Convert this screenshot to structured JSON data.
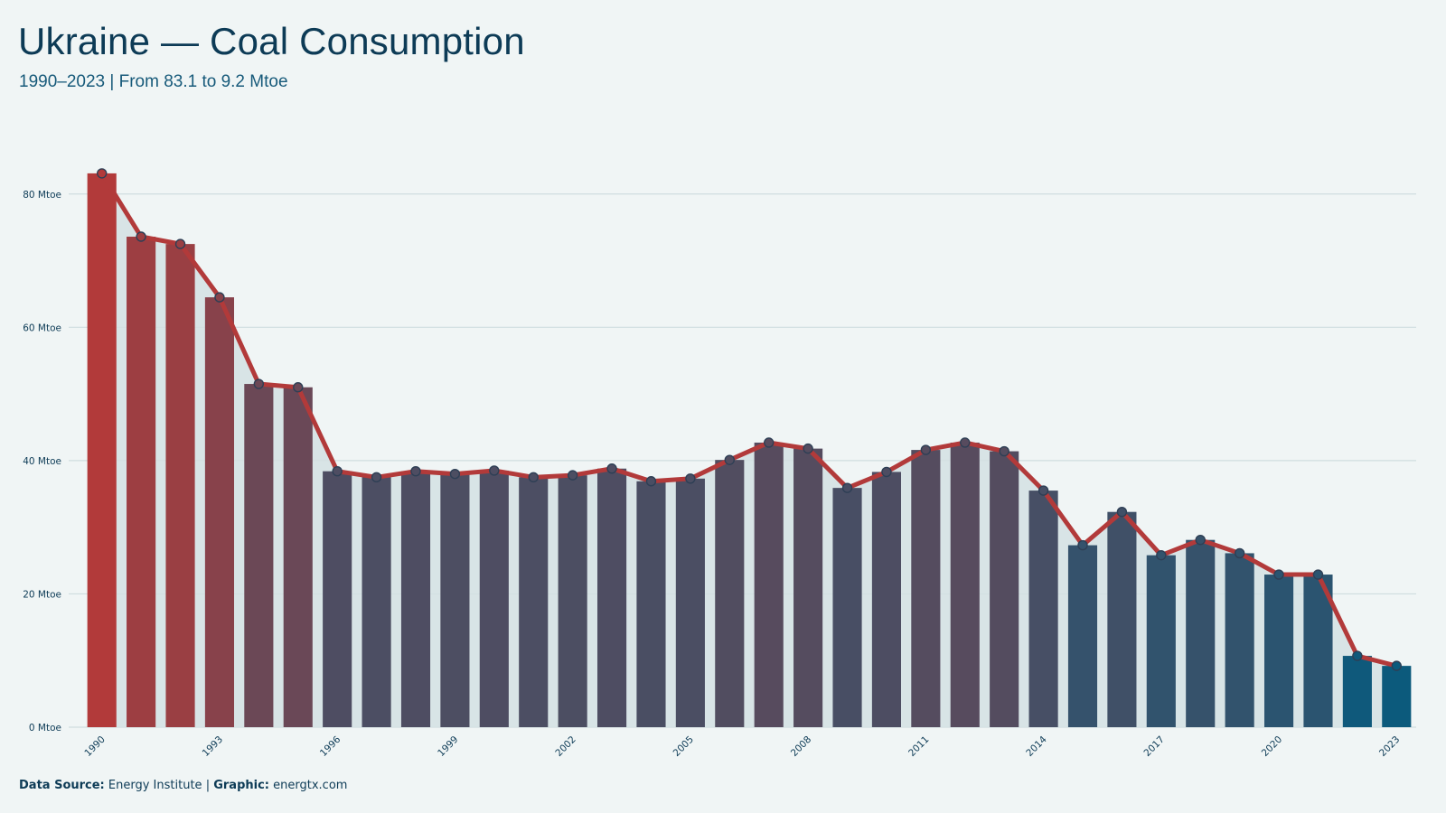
{
  "title": "Ukraine — Coal Consumption",
  "subtitle": "1990–2023 | From 83.1 to 9.2 Mtoe",
  "footer": {
    "source_label": "Data Source:",
    "source_value": "Energy Institute",
    "separator": "|",
    "graphic_label": "Graphic:",
    "graphic_value": "energtx.com"
  },
  "colors": {
    "background": "#f0f5f5",
    "line": "#b23a3a",
    "high": "#b23a3a",
    "low": "#0c5a7c",
    "grid": "#cfdddf",
    "area": "#d3e0e3",
    "text": "#0d3b56"
  },
  "chart_data": {
    "type": "bar",
    "title": "Ukraine — Coal Consumption",
    "subtitle": "1990–2023 | From 83.1 to 9.2 Mtoe",
    "xlabel": "",
    "ylabel": "",
    "unit": "Mtoe",
    "ylim": [
      0,
      90
    ],
    "y_ticks": [
      0,
      20,
      40,
      60,
      80
    ],
    "y_tick_labels": [
      "0 Mtoe",
      "20 Mtoe",
      "40 Mtoe",
      "60 Mtoe",
      "80 Mtoe"
    ],
    "x_tick_labels": [
      "1990",
      "1993",
      "1996",
      "1999",
      "2002",
      "2005",
      "2008",
      "2011",
      "2014",
      "2017",
      "2020",
      "2023"
    ],
    "grid": true,
    "legend": "none",
    "categories": [
      1990,
      1991,
      1992,
      1993,
      1994,
      1995,
      1996,
      1997,
      1998,
      1999,
      2000,
      2001,
      2002,
      2003,
      2004,
      2005,
      2006,
      2007,
      2008,
      2009,
      2010,
      2011,
      2012,
      2013,
      2014,
      2015,
      2016,
      2017,
      2018,
      2019,
      2020,
      2021,
      2022,
      2023
    ],
    "values": [
      83.1,
      73.6,
      72.5,
      64.5,
      51.5,
      51.0,
      38.4,
      37.5,
      38.4,
      38.0,
      38.5,
      37.5,
      37.8,
      38.8,
      36.9,
      37.3,
      40.1,
      42.7,
      41.8,
      35.9,
      38.3,
      41.6,
      42.7,
      41.4,
      35.5,
      27.3,
      32.3,
      25.8,
      28.1,
      26.1,
      22.9,
      22.9,
      10.7,
      9.2
    ]
  }
}
